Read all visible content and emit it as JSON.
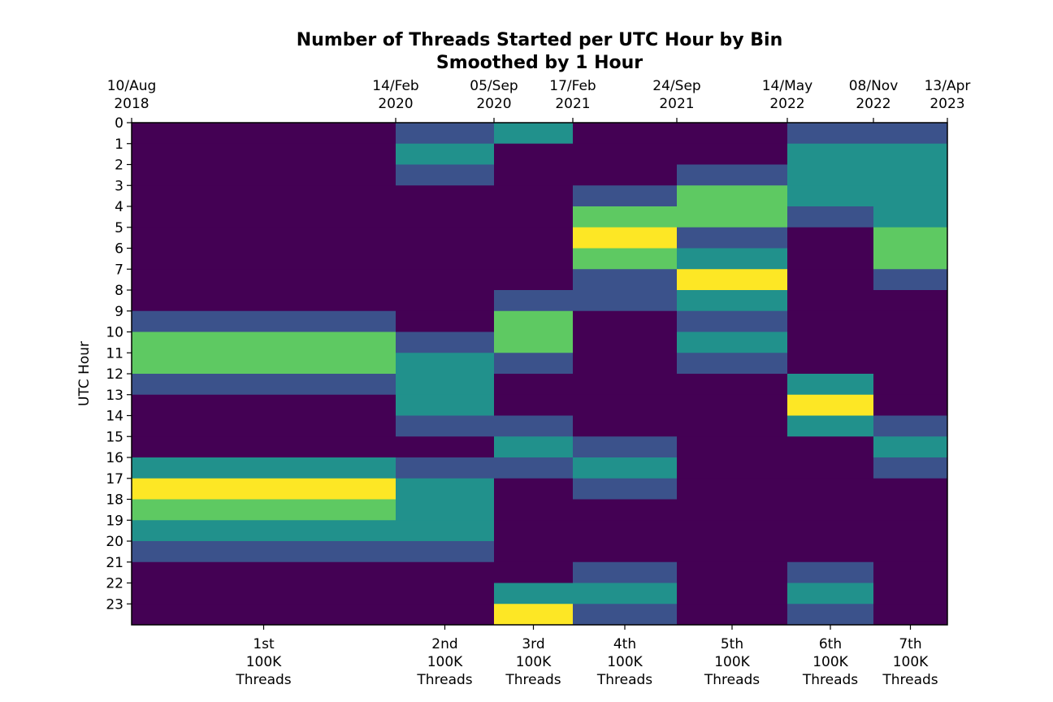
{
  "chart_data": {
    "type": "heatmap",
    "title": "Number of Threads Started per UTC Hour by Bin",
    "subtitle": "Smoothed by 1 Hour",
    "ylabel": "UTC Hour",
    "y_ticks": [
      "0",
      "1",
      "2",
      "3",
      "4",
      "5",
      "6",
      "7",
      "8",
      "9",
      "10",
      "11",
      "12",
      "13",
      "14",
      "15",
      "16",
      "17",
      "18",
      "19",
      "20",
      "21",
      "22",
      "23"
    ],
    "top_ticks": [
      {
        "date": "10/Aug",
        "year": "2018",
        "position": 0.0
      },
      {
        "date": "14/Feb",
        "year": "2020",
        "position": 1.0
      },
      {
        "date": "05/Sep",
        "year": "2020",
        "position": 2.0
      },
      {
        "date": "17/Feb",
        "year": "2021",
        "position": 3.0
      },
      {
        "date": "24/Sep",
        "year": "2021",
        "position": 4.0
      },
      {
        "date": "14/May",
        "year": "2022",
        "position": 5.0
      },
      {
        "date": "08/Nov",
        "year": "2022",
        "position": 6.0
      },
      {
        "date": "13/Apr",
        "year": "2023",
        "position": 7.0
      }
    ],
    "bins": [
      {
        "label": [
          "1st",
          "100K",
          "Threads"
        ],
        "start": "10/Aug 2018",
        "end": "14/Feb 2020"
      },
      {
        "label": [
          "2nd",
          "100K",
          "Threads"
        ],
        "start": "14/Feb 2020",
        "end": "05/Sep 2020"
      },
      {
        "label": [
          "3rd",
          "100K",
          "Threads"
        ],
        "start": "05/Sep 2020",
        "end": "17/Feb 2021"
      },
      {
        "label": [
          "4th",
          "100K",
          "Threads"
        ],
        "start": "17/Feb 2021",
        "end": "24/Sep 2021"
      },
      {
        "label": [
          "5th",
          "100K",
          "Threads"
        ],
        "start": "24/Sep 2021",
        "end": "14/May 2022"
      },
      {
        "label": [
          "6th",
          "100K",
          "Threads"
        ],
        "start": "14/May 2022",
        "end": "08/Nov 2022"
      },
      {
        "label": [
          "7th",
          "100K",
          "Threads"
        ],
        "start": "08/Nov 2022",
        "end": "13/Apr 2023"
      }
    ],
    "color_levels": [
      "#440154",
      "#3b528b",
      "#21918c",
      "#5ec962",
      "#fde725"
    ],
    "values": [
      [
        0,
        0,
        0,
        0,
        0,
        0,
        0,
        0,
        0,
        1,
        3,
        3,
        1,
        0,
        0,
        0,
        2,
        4,
        3,
        2,
        1,
        0,
        0,
        0
      ],
      [
        1,
        2,
        1,
        0,
        0,
        0,
        0,
        0,
        0,
        0,
        1,
        2,
        2,
        2,
        1,
        0,
        1,
        2,
        2,
        2,
        1,
        0,
        0,
        0
      ],
      [
        2,
        0,
        0,
        0,
        0,
        0,
        0,
        0,
        1,
        3,
        3,
        1,
        0,
        0,
        1,
        2,
        1,
        0,
        0,
        0,
        0,
        0,
        2,
        4
      ],
      [
        0,
        0,
        0,
        1,
        3,
        4,
        3,
        1,
        1,
        0,
        0,
        0,
        0,
        0,
        0,
        1,
        2,
        1,
        0,
        0,
        0,
        1,
        2,
        1
      ],
      [
        0,
        0,
        1,
        3,
        3,
        1,
        2,
        4,
        2,
        1,
        2,
        1,
        0,
        0,
        0,
        0,
        0,
        0,
        0,
        0,
        0,
        0,
        0,
        0
      ],
      [
        1,
        2,
        2,
        2,
        1,
        0,
        0,
        0,
        0,
        0,
        0,
        0,
        2,
        4,
        2,
        0,
        0,
        0,
        0,
        0,
        0,
        1,
        2,
        1
      ],
      [
        1,
        2,
        2,
        2,
        2,
        3,
        3,
        1,
        0,
        0,
        0,
        0,
        0,
        0,
        1,
        2,
        1,
        0,
        0,
        0,
        0,
        0,
        0,
        0
      ]
    ]
  }
}
